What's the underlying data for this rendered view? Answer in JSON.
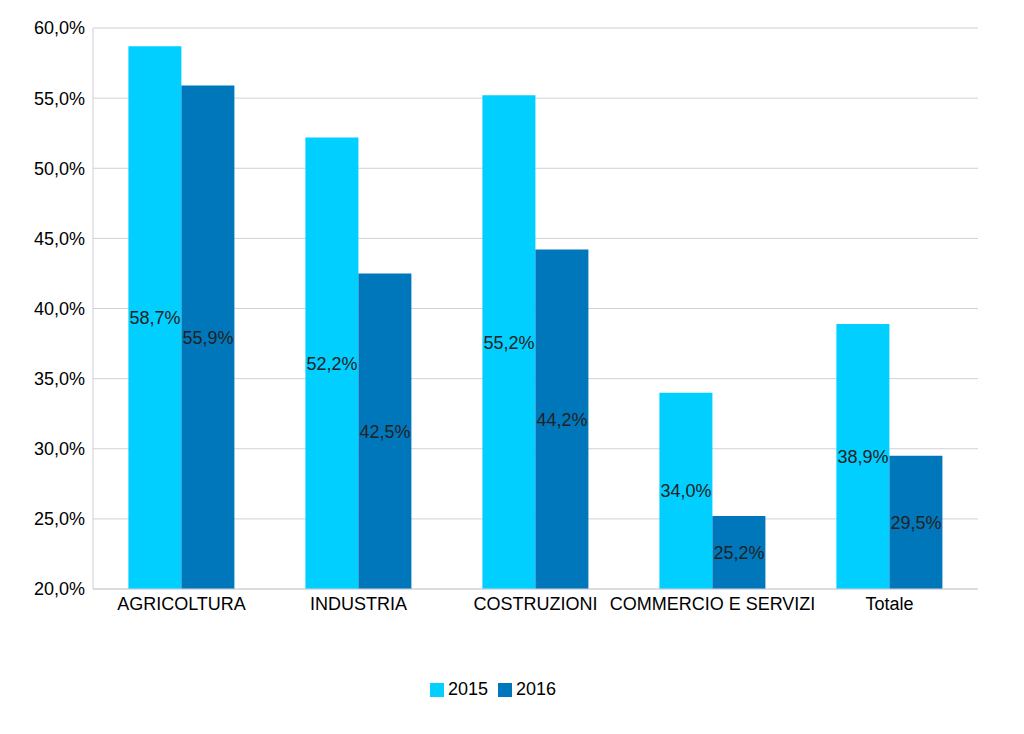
{
  "chart_data": {
    "type": "bar",
    "categories": [
      "AGRICOLTURA",
      "INDUSTRIA",
      "COSTRUZIONI",
      "COMMERCIO E SERVIZI",
      "Totale"
    ],
    "series": [
      {
        "name": "2015",
        "color": "#00CFFF",
        "values": [
          58.7,
          52.2,
          55.2,
          34.0,
          38.9
        ],
        "value_labels": [
          "58,7%",
          "52,2%",
          "55,2%",
          "34,0%",
          "38,9%"
        ]
      },
      {
        "name": "2016",
        "color": "#0077BB",
        "values": [
          55.9,
          42.5,
          44.2,
          25.2,
          29.5
        ],
        "value_labels": [
          "55,9%",
          "42,5%",
          "44,2%",
          "25,2%",
          "29,5%"
        ]
      }
    ],
    "ylim": [
      20,
      60
    ],
    "yticks": [
      {
        "value": 20,
        "label": "20,0%"
      },
      {
        "value": 25,
        "label": "25,0%"
      },
      {
        "value": 30,
        "label": "30,0%"
      },
      {
        "value": 35,
        "label": "35,0%"
      },
      {
        "value": 40,
        "label": "40,0%"
      },
      {
        "value": 45,
        "label": "45,0%"
      },
      {
        "value": 50,
        "label": "50,0%"
      },
      {
        "value": 55,
        "label": "55,0%"
      },
      {
        "value": 60,
        "label": "60,0%"
      }
    ],
    "grid": true,
    "data_labels": true,
    "legend": "bottom"
  }
}
